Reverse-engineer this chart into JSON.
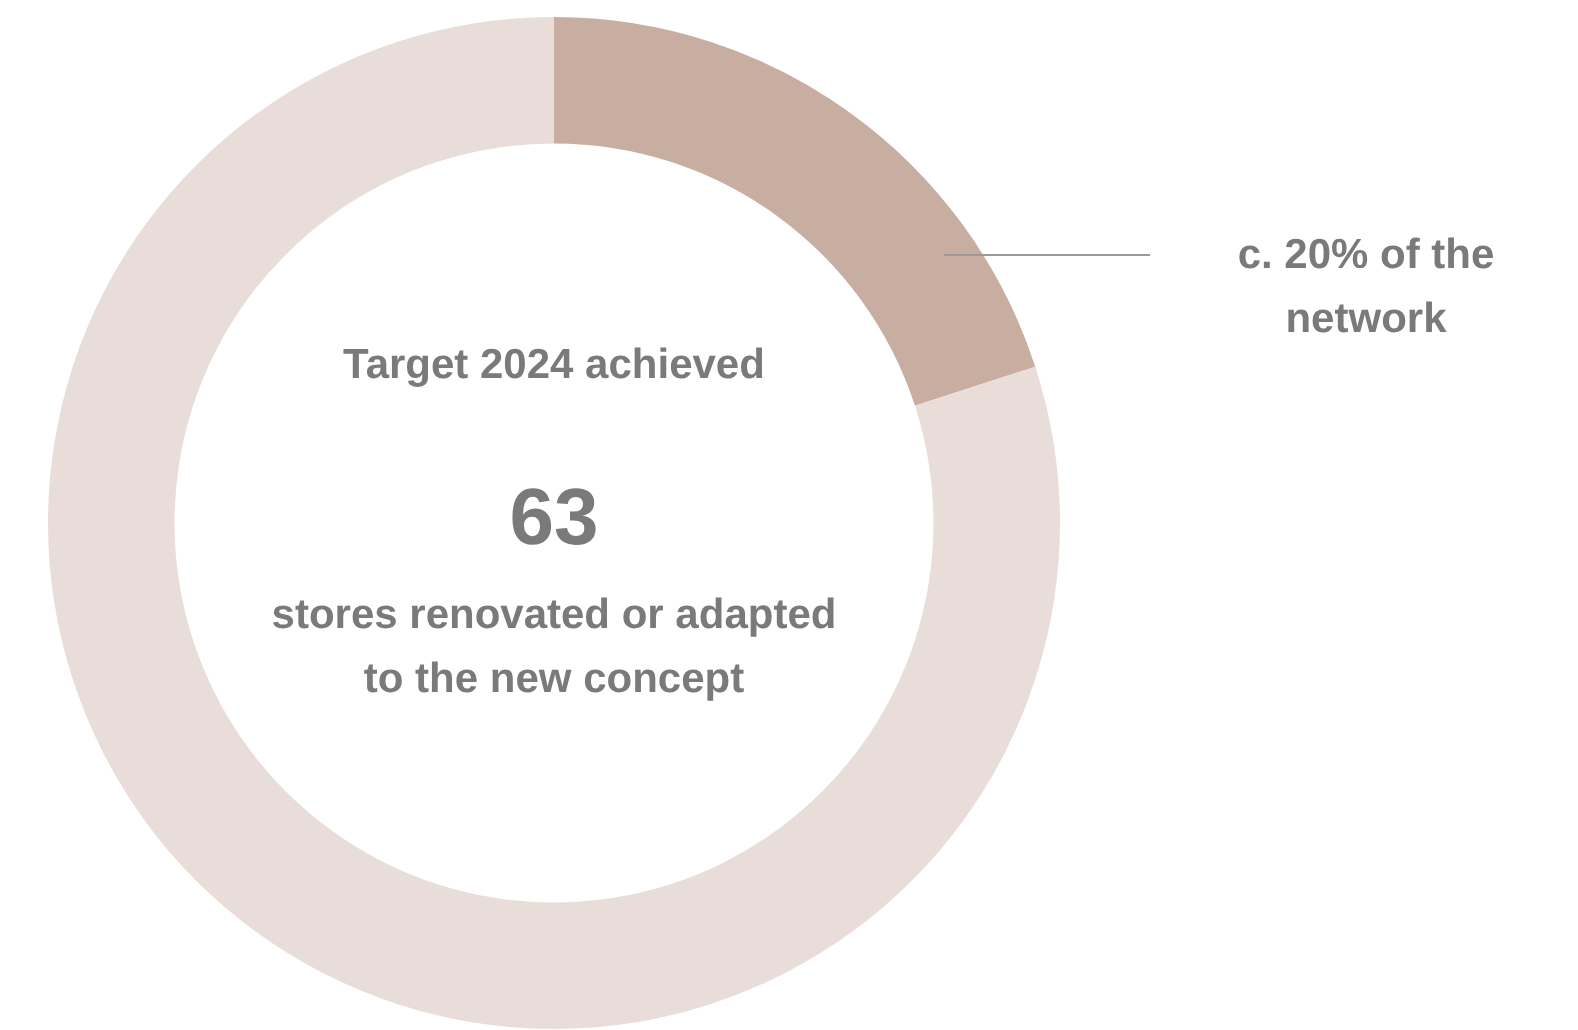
{
  "chart_data": {
    "type": "donut",
    "categories": [
      null,
      null
    ],
    "values": [
      20,
      80
    ],
    "colors": [
      "#c8ada1",
      "#e9ddd9"
    ],
    "legend": false,
    "annotations": [
      "Target 2024 achieved",
      "63",
      "stores renovated or adapted to the new concept",
      "c. 20% of the network"
    ]
  }
}
